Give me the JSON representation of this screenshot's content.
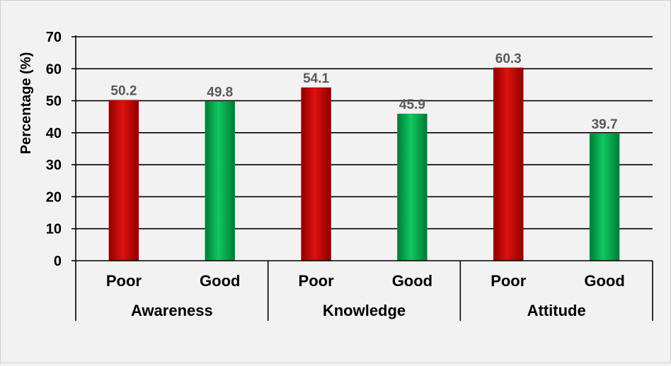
{
  "chart_data": {
    "type": "bar",
    "groups": [
      "Awareness",
      "Knowledge",
      "Attitude"
    ],
    "sub_categories": [
      "Poor",
      "Good"
    ],
    "bars": [
      {
        "group": "Awareness",
        "category": "Poor",
        "value": 50.2,
        "label": "50.2",
        "color": "#c00000"
      },
      {
        "group": "Awareness",
        "category": "Good",
        "value": 49.8,
        "label": "49.8",
        "color": "#00b050"
      },
      {
        "group": "Knowledge",
        "category": "Poor",
        "value": 54.1,
        "label": "54.1",
        "color": "#c00000"
      },
      {
        "group": "Knowledge",
        "category": "Good",
        "value": 45.9,
        "label": "45.9",
        "color": "#00b050"
      },
      {
        "group": "Attitude",
        "category": "Poor",
        "value": 60.3,
        "label": "60.3",
        "color": "#c00000"
      },
      {
        "group": "Attitude",
        "category": "Good",
        "value": 39.7,
        "label": "39.7",
        "color": "#00b050"
      }
    ],
    "ylabel": "Percentage (%)",
    "ylim": [
      0,
      70
    ],
    "yticks": [
      "0",
      "10",
      "20",
      "30",
      "40",
      "50",
      "60",
      "70"
    ],
    "grid": true,
    "legend": "none"
  }
}
